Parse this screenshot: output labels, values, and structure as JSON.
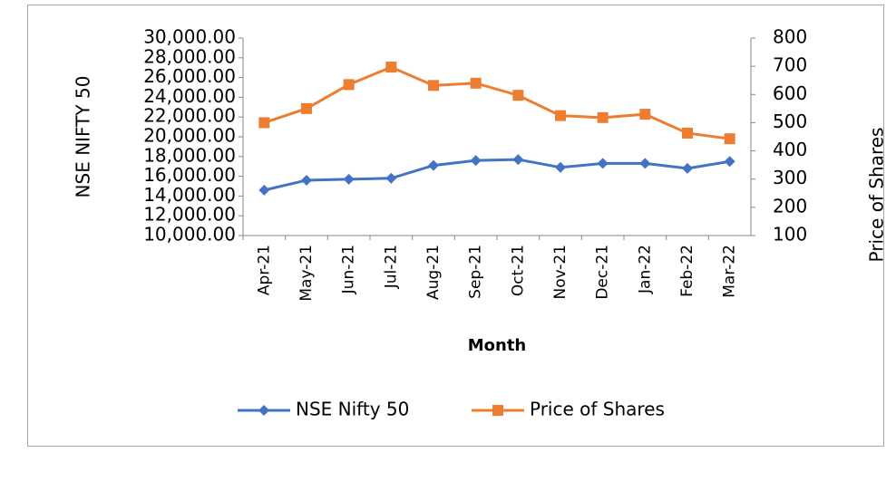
{
  "chart_data": {
    "type": "line",
    "x_label": "Month",
    "y_label": "NSE NIFTY 50",
    "y2_label": "Price of Shares",
    "categories": [
      "Apr-21",
      "May-21",
      "Jun-21",
      "Jul-21",
      "Aug-21",
      "Sep-21",
      "Oct-21",
      "Nov-21",
      "Dec-21",
      "Jan-22",
      "Feb-22",
      "Mar-22"
    ],
    "series": [
      {
        "name": "NSE Nifty 50",
        "color": "#4472c4",
        "marker": "diamond",
        "axis": "y",
        "values": [
          14600,
          15600,
          15700,
          15800,
          17100,
          17600,
          17700,
          16900,
          17300,
          17300,
          16800,
          17500
        ]
      },
      {
        "name": "Price of Shares",
        "color": "#ed7d31",
        "marker": "square",
        "axis": "y2",
        "values": [
          500,
          550,
          635,
          697,
          632,
          640,
          597,
          525,
          518,
          530,
          463,
          443
        ]
      }
    ],
    "ylim": [
      10000,
      30000
    ],
    "yticks": [
      {
        "value": 10000,
        "label": "10,000.00"
      },
      {
        "value": 12000,
        "label": "12,000.00"
      },
      {
        "value": 14000,
        "label": "14,000.00"
      },
      {
        "value": 16000,
        "label": "16,000.00"
      },
      {
        "value": 18000,
        "label": "18,000.00"
      },
      {
        "value": 20000,
        "label": "20,000.00"
      },
      {
        "value": 22000,
        "label": "22,000.00"
      },
      {
        "value": 24000,
        "label": "24,000.00"
      },
      {
        "value": 26000,
        "label": "26,000.00"
      },
      {
        "value": 28000,
        "label": "28,000.00"
      },
      {
        "value": 30000,
        "label": "30,000.00"
      }
    ],
    "y2lim": [
      100,
      800
    ],
    "y2ticks": [
      100,
      200,
      300,
      400,
      500,
      600,
      700,
      800
    ],
    "grid": false,
    "legend": "bottom"
  }
}
